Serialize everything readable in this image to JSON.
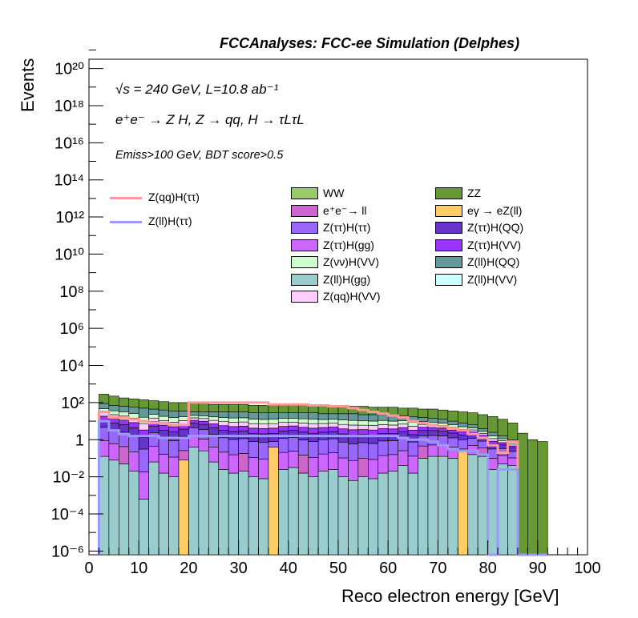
{
  "header": "FCCAnalyses: FCC-ee Simulation (Delphes)",
  "annotations": {
    "line1": "√s = 240 GeV, L=10.8 ab⁻¹",
    "line2": "e⁺e⁻ → Z H, Z → qq, H → τLτL",
    "line3": "Emiss>100 GeV, BDT score>0.5"
  },
  "chart_data": {
    "type": "stacked-histogram",
    "xlabel": "Reco electron energy [GeV]",
    "ylabel": "Events",
    "xlim": [
      0,
      100
    ],
    "ylim_log10": [
      -6.2,
      20.5
    ],
    "yscale": "log",
    "bin_width": 2,
    "x_ticks": [
      0,
      10,
      20,
      30,
      40,
      50,
      60,
      70,
      80,
      90,
      100
    ],
    "x_tick_labels": [
      "0",
      "10",
      "20",
      "30",
      "40",
      "50",
      "60",
      "70",
      "80",
      "90",
      "100"
    ],
    "y_ticks_log10": [
      -6,
      -4,
      -2,
      0,
      2,
      4,
      6,
      8,
      10,
      12,
      14,
      16,
      18,
      20
    ],
    "y_tick_labels": [
      "10⁻⁶",
      "10⁻⁴",
      "10⁻²",
      "1",
      "10²",
      "10⁴",
      "10⁶",
      "10⁸",
      "10¹⁰",
      "10¹²",
      "10¹⁴",
      "10¹⁶",
      "10¹⁸",
      "10²⁰"
    ],
    "stack_profile_log10": {
      "x_start": [
        2,
        4,
        6,
        8,
        10,
        12,
        14,
        16,
        18,
        20,
        22,
        24,
        26,
        28,
        30,
        32,
        34,
        36,
        38,
        40,
        42,
        44,
        46,
        48,
        50,
        52,
        54,
        56,
        58,
        60,
        62,
        64,
        66,
        68,
        70,
        72,
        74,
        76,
        78,
        80,
        82,
        84,
        86,
        88,
        90
      ],
      "zz_top": [
        2.45,
        2.35,
        2.25,
        2.2,
        2.15,
        2.1,
        2.05,
        2.0,
        2.0,
        1.95,
        1.95,
        1.9,
        1.9,
        1.9,
        1.9,
        1.85,
        1.85,
        1.85,
        1.85,
        1.85,
        1.85,
        1.8,
        1.8,
        1.8,
        1.8,
        1.8,
        1.8,
        1.75,
        1.75,
        1.75,
        1.7,
        1.7,
        1.65,
        1.65,
        1.6,
        1.55,
        1.5,
        1.45,
        1.35,
        1.25,
        1.1,
        0.9,
        0.35,
        0.0,
        -0.1
      ],
      "bulk_top": [
        1.95,
        1.85,
        1.8,
        1.75,
        1.7,
        1.65,
        1.6,
        1.55,
        1.55,
        1.5,
        1.5,
        1.5,
        1.5,
        1.5,
        1.5,
        1.45,
        1.45,
        1.45,
        1.45,
        1.45,
        1.45,
        1.45,
        1.4,
        1.4,
        1.4,
        1.4,
        1.35,
        1.35,
        1.35,
        1.3,
        1.3,
        1.25,
        1.2,
        1.15,
        1.1,
        1.0,
        0.9,
        0.8,
        0.6,
        0.4,
        0.2,
        0.0,
        -6.2,
        -6.2,
        -6.2
      ],
      "teal_top": [
        -0.9,
        -1.1,
        -1.3,
        -1.7,
        -3.2,
        -1.2,
        -1.8,
        -2.0,
        -1.5,
        -0.4,
        -0.6,
        -1.2,
        -1.6,
        -1.8,
        -1.7,
        -2.0,
        -2.1,
        -2.0,
        -1.6,
        -1.5,
        -1.8,
        -2.0,
        -1.7,
        -1.6,
        -2.0,
        -2.2,
        -2.0,
        -2.1,
        -1.8,
        -1.7,
        -1.4,
        -1.8,
        -1.0,
        -0.9,
        -0.9,
        -1.0,
        -1.1,
        -0.8,
        -0.9,
        -1.6,
        -1.3,
        -1.4,
        -6.2,
        -6.2,
        -6.2
      ]
    },
    "series": [
      {
        "name": "WW",
        "color": "#99cc66"
      },
      {
        "name": "ZZ",
        "color": "#669933"
      },
      {
        "name": "e⁺e⁻→ ll",
        "color": "#cc66cc"
      },
      {
        "name": "eγ → eZ(ll)",
        "color": "#ffcc66"
      },
      {
        "name": "Z(ττ)H(ττ)",
        "color": "#9966ff"
      },
      {
        "name": "Z(ττ)H(QQ)",
        "color": "#6633cc"
      },
      {
        "name": "Z(ττ)H(gg)",
        "color": "#cc66ff"
      },
      {
        "name": "Z(ττ)H(VV)",
        "color": "#9933ff"
      },
      {
        "name": "Z(νν)H(VV)",
        "color": "#ccffcc"
      },
      {
        "name": "Z(ll)H(QQ)",
        "color": "#669999"
      },
      {
        "name": "Z(ll)H(gg)",
        "color": "#99cccc"
      },
      {
        "name": "Z(ll)H(VV)",
        "color": "#ccffff"
      },
      {
        "name": "Z(qq)H(VV)",
        "color": "#ffccff"
      }
    ],
    "signals": [
      {
        "name": "Z(qq)H(ττ)",
        "color": "#ff9999",
        "values_log10": [
          1.5,
          1.2,
          1.2,
          1.1,
          1.0,
          0.9,
          0.9,
          0.8,
          0.8,
          2.0,
          2.0,
          2.0,
          2.0,
          2.0,
          2.0,
          2.0,
          2.0,
          1.9,
          1.9,
          1.9,
          1.9,
          1.85,
          1.85,
          1.8,
          1.8,
          1.7,
          1.6,
          1.5,
          1.4,
          1.3,
          1.2,
          1.0,
          0.9,
          0.8,
          0.7,
          0.6,
          0.5,
          0.3,
          0.1,
          -0.3,
          -0.7,
          -0.1,
          -6.2,
          -6.2,
          -6.2
        ]
      },
      {
        "name": "Z(ll)H(ττ)",
        "color": "#9999ff",
        "values_log10": [
          1.0,
          0.5,
          0.3,
          0.2,
          0.2,
          0.2,
          0.1,
          0.1,
          0.1,
          0.2,
          0.2,
          0.2,
          0.2,
          0.2,
          0.2,
          0.2,
          0.2,
          0.2,
          0.2,
          0.2,
          0.2,
          0.2,
          0.2,
          0.2,
          0.2,
          0.2,
          0.2,
          0.2,
          0.2,
          0.2,
          0.1,
          0.0,
          0.0,
          -0.1,
          -0.3,
          -0.5,
          -0.6,
          -0.6,
          -0.8,
          -6.2,
          -1.6,
          -1.6,
          -6.2,
          -6.2,
          -6.2
        ]
      }
    ]
  }
}
